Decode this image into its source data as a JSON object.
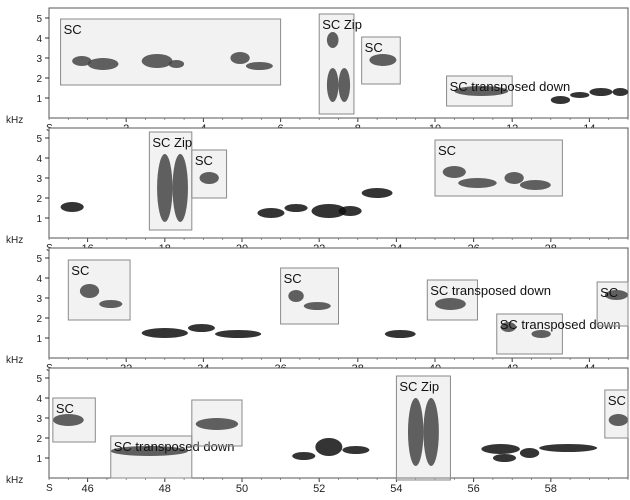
{
  "chart_data": {
    "type": "spectrogram",
    "y_unit_label": "kHz",
    "x_unit_label": "S",
    "y_ticks": [
      1,
      2,
      3,
      4,
      5
    ],
    "rows": [
      {
        "xlim": [
          0,
          15.0
        ],
        "x_ticks": [
          2,
          4,
          6,
          8,
          10,
          12,
          14
        ],
        "boxes": [
          {
            "label": "SC",
            "x0": 0.3,
            "x1": 6.0,
            "y0": 1.65,
            "y1": 4.95
          },
          {
            "label": "SC Zip",
            "x0": 7.0,
            "x1": 7.9,
            "y0": 0.2,
            "y1": 5.2
          },
          {
            "label": "SC",
            "x0": 8.1,
            "x1": 9.1,
            "y0": 1.7,
            "y1": 4.05
          },
          {
            "label": "SC transposed down",
            "x0": 10.3,
            "x1": 12.0,
            "y0": 0.6,
            "y1": 2.1
          }
        ],
        "calls": [
          {
            "x0": 0.6,
            "x1": 1.1,
            "y0": 2.6,
            "y1": 3.1
          },
          {
            "x0": 1.0,
            "x1": 1.8,
            "y0": 2.4,
            "y1": 3.0
          },
          {
            "x0": 2.4,
            "x1": 3.2,
            "y0": 2.5,
            "y1": 3.2
          },
          {
            "x0": 3.1,
            "x1": 3.5,
            "y0": 2.5,
            "y1": 2.9
          },
          {
            "x0": 4.7,
            "x1": 5.2,
            "y0": 2.7,
            "y1": 3.3
          },
          {
            "x0": 5.1,
            "x1": 5.8,
            "y0": 2.4,
            "y1": 2.8
          },
          {
            "x0": 7.2,
            "x1": 7.5,
            "y0": 3.5,
            "y1": 4.3
          },
          {
            "x0": 7.2,
            "x1": 7.5,
            "y0": 0.8,
            "y1": 2.5
          },
          {
            "x0": 7.5,
            "x1": 7.8,
            "y0": 0.8,
            "y1": 2.5
          },
          {
            "x0": 8.3,
            "x1": 9.0,
            "y0": 2.6,
            "y1": 3.2
          },
          {
            "x0": 10.5,
            "x1": 11.9,
            "y0": 1.1,
            "y1": 1.6
          },
          {
            "x0": 13.0,
            "x1": 13.5,
            "y0": 0.7,
            "y1": 1.1
          },
          {
            "x0": 13.5,
            "x1": 14.0,
            "y0": 1.0,
            "y1": 1.3
          },
          {
            "x0": 14.0,
            "x1": 14.6,
            "y0": 1.1,
            "y1": 1.5
          },
          {
            "x0": 14.6,
            "x1": 15.0,
            "y0": 1.1,
            "y1": 1.5
          }
        ]
      },
      {
        "xlim": [
          15.0,
          30.0
        ],
        "x_ticks": [
          16,
          18,
          20,
          22,
          24,
          26,
          28
        ],
        "boxes": [
          {
            "label": "SC Zip",
            "x0": 17.6,
            "x1": 18.7,
            "y0": 0.4,
            "y1": 5.3
          },
          {
            "label": "SC",
            "x0": 18.7,
            "x1": 19.6,
            "y0": 2.0,
            "y1": 4.4
          },
          {
            "label": "SC",
            "x0": 25.0,
            "x1": 28.3,
            "y0": 2.1,
            "y1": 4.9
          }
        ],
        "calls": [
          {
            "x0": 15.3,
            "x1": 15.9,
            "y0": 1.3,
            "y1": 1.8
          },
          {
            "x0": 17.8,
            "x1": 18.2,
            "y0": 0.8,
            "y1": 4.2
          },
          {
            "x0": 18.2,
            "x1": 18.6,
            "y0": 0.8,
            "y1": 4.2
          },
          {
            "x0": 18.9,
            "x1": 19.4,
            "y0": 2.7,
            "y1": 3.3
          },
          {
            "x0": 20.4,
            "x1": 21.1,
            "y0": 1.0,
            "y1": 1.5
          },
          {
            "x0": 21.1,
            "x1": 21.7,
            "y0": 1.3,
            "y1": 1.7
          },
          {
            "x0": 21.8,
            "x1": 22.7,
            "y0": 1.0,
            "y1": 1.7
          },
          {
            "x0": 22.5,
            "x1": 23.1,
            "y0": 1.1,
            "y1": 1.6
          },
          {
            "x0": 23.1,
            "x1": 23.9,
            "y0": 2.0,
            "y1": 2.5
          },
          {
            "x0": 25.2,
            "x1": 25.8,
            "y0": 3.0,
            "y1": 3.6
          },
          {
            "x0": 25.6,
            "x1": 26.6,
            "y0": 2.5,
            "y1": 3.0
          },
          {
            "x0": 26.8,
            "x1": 27.3,
            "y0": 2.7,
            "y1": 3.3
          },
          {
            "x0": 27.2,
            "x1": 28.0,
            "y0": 2.4,
            "y1": 2.9
          }
        ]
      },
      {
        "xlim": [
          30.0,
          45.0
        ],
        "x_ticks": [
          32,
          34,
          36,
          38,
          40,
          42,
          44
        ],
        "boxes": [
          {
            "label": "SC",
            "x0": 30.5,
            "x1": 32.1,
            "y0": 1.9,
            "y1": 4.9
          },
          {
            "label": "SC",
            "x0": 36.0,
            "x1": 37.5,
            "y0": 1.7,
            "y1": 4.5
          },
          {
            "label": "SC transposed down",
            "x0": 39.8,
            "x1": 41.1,
            "y0": 1.9,
            "y1": 3.9
          },
          {
            "label": "SC transposed down",
            "x0": 41.6,
            "x1": 43.3,
            "y0": 0.2,
            "y1": 2.2
          },
          {
            "label": "SC",
            "x0": 44.2,
            "x1": 45.0,
            "y0": 1.6,
            "y1": 3.8
          }
        ],
        "calls": [
          {
            "x0": 30.8,
            "x1": 31.3,
            "y0": 3.0,
            "y1": 3.7
          },
          {
            "x0": 31.3,
            "x1": 31.9,
            "y0": 2.5,
            "y1": 2.9
          },
          {
            "x0": 32.4,
            "x1": 33.6,
            "y0": 1.0,
            "y1": 1.5
          },
          {
            "x0": 33.6,
            "x1": 34.3,
            "y0": 1.3,
            "y1": 1.7
          },
          {
            "x0": 34.3,
            "x1": 35.5,
            "y0": 1.0,
            "y1": 1.4
          },
          {
            "x0": 36.2,
            "x1": 36.6,
            "y0": 2.8,
            "y1": 3.4
          },
          {
            "x0": 36.6,
            "x1": 37.3,
            "y0": 2.4,
            "y1": 2.8
          },
          {
            "x0": 38.7,
            "x1": 39.5,
            "y0": 1.0,
            "y1": 1.4
          },
          {
            "x0": 40.0,
            "x1": 40.8,
            "y0": 2.4,
            "y1": 3.0
          },
          {
            "x0": 41.7,
            "x1": 42.1,
            "y0": 1.3,
            "y1": 1.8
          },
          {
            "x0": 42.5,
            "x1": 43.0,
            "y0": 1.0,
            "y1": 1.4
          },
          {
            "x0": 44.4,
            "x1": 45.0,
            "y0": 2.9,
            "y1": 3.4
          }
        ]
      },
      {
        "xlim": [
          45.0,
          60.0
        ],
        "x_ticks": [
          46,
          48,
          50,
          52,
          54,
          56,
          58
        ],
        "boxes": [
          {
            "label": "SC",
            "x0": 45.1,
            "x1": 46.2,
            "y0": 1.8,
            "y1": 4.0
          },
          {
            "label": "SC transposed down",
            "x0": 46.6,
            "x1": 48.7,
            "y0": 0.0,
            "y1": 2.1
          },
          {
            "label": "",
            "x0": 48.7,
            "x1": 50.0,
            "y0": 1.6,
            "y1": 3.9
          },
          {
            "label": "SC Zip",
            "x0": 54.0,
            "x1": 55.4,
            "y0": -0.1,
            "y1": 5.1
          },
          {
            "label": "SC",
            "x0": 59.4,
            "x1": 60.0,
            "y0": 2.0,
            "y1": 4.4
          }
        ],
        "calls": [
          {
            "x0": 45.1,
            "x1": 45.9,
            "y0": 2.6,
            "y1": 3.2
          },
          {
            "x0": 46.6,
            "x1": 48.6,
            "y0": 1.1,
            "y1": 1.6
          },
          {
            "x0": 48.8,
            "x1": 49.9,
            "y0": 2.4,
            "y1": 3.0
          },
          {
            "x0": 51.3,
            "x1": 51.9,
            "y0": 0.9,
            "y1": 1.3
          },
          {
            "x0": 51.9,
            "x1": 52.6,
            "y0": 1.1,
            "y1": 2.0
          },
          {
            "x0": 52.6,
            "x1": 53.3,
            "y0": 1.2,
            "y1": 1.6
          },
          {
            "x0": 54.3,
            "x1": 54.7,
            "y0": 0.6,
            "y1": 4.0
          },
          {
            "x0": 54.7,
            "x1": 55.1,
            "y0": 0.6,
            "y1": 4.0
          },
          {
            "x0": 56.2,
            "x1": 57.2,
            "y0": 1.2,
            "y1": 1.7
          },
          {
            "x0": 56.5,
            "x1": 57.1,
            "y0": 0.8,
            "y1": 1.2
          },
          {
            "x0": 57.2,
            "x1": 57.7,
            "y0": 1.0,
            "y1": 1.5
          },
          {
            "x0": 57.7,
            "x1": 59.2,
            "y0": 1.3,
            "y1": 1.7
          },
          {
            "x0": 59.5,
            "x1": 60.0,
            "y0": 2.6,
            "y1": 3.2
          }
        ]
      }
    ]
  }
}
